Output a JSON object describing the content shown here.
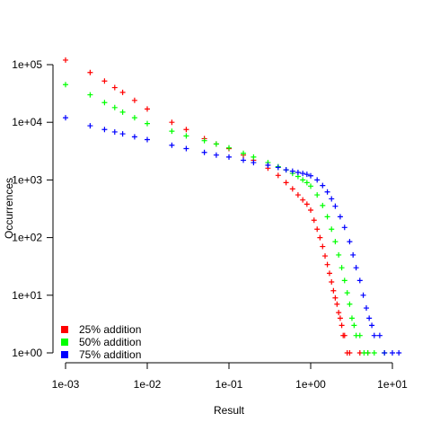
{
  "chart_data": {
    "type": "scatter",
    "title": "",
    "xlabel": "Result",
    "ylabel": "Occurrences",
    "xscale": "log",
    "yscale": "log",
    "xlim": [
      0.00075,
      15
    ],
    "ylim": [
      0.8,
      150000
    ],
    "x_ticks": [
      0.001,
      0.01,
      0.1,
      1,
      10
    ],
    "x_tick_labels": [
      "1e-03",
      "1e-02",
      "1e-01",
      "1e+00",
      "1e+01"
    ],
    "y_ticks": [
      1,
      10,
      100,
      1000,
      10000,
      100000
    ],
    "y_tick_labels": [
      "1e+00",
      "1e+01",
      "1e+02",
      "1e+03",
      "1e+04",
      "1e+05"
    ],
    "marker": "+",
    "grid": false,
    "legend_position": "bottom-left",
    "series": [
      {
        "name": "25% addition",
        "color": "#ff0000",
        "points": [
          [
            0.001,
            120000
          ],
          [
            0.002,
            73000
          ],
          [
            0.003,
            52000
          ],
          [
            0.004,
            40000
          ],
          [
            0.005,
            33000
          ],
          [
            0.007,
            24000
          ],
          [
            0.01,
            17000
          ],
          [
            0.02,
            10000
          ],
          [
            0.03,
            7500
          ],
          [
            0.05,
            5200
          ],
          [
            0.07,
            4200
          ],
          [
            0.1,
            3500
          ],
          [
            0.15,
            2700
          ],
          [
            0.2,
            2200
          ],
          [
            0.3,
            1600
          ],
          [
            0.4,
            1200
          ],
          [
            0.5,
            900
          ],
          [
            0.6,
            700
          ],
          [
            0.7,
            550
          ],
          [
            0.8,
            450
          ],
          [
            0.9,
            380
          ],
          [
            1.0,
            300
          ],
          [
            1.1,
            200
          ],
          [
            1.2,
            140
          ],
          [
            1.3,
            100
          ],
          [
            1.4,
            70
          ],
          [
            1.5,
            48
          ],
          [
            1.6,
            34
          ],
          [
            1.7,
            24
          ],
          [
            1.8,
            17
          ],
          [
            1.9,
            12
          ],
          [
            2.0,
            9
          ],
          [
            2.1,
            7
          ],
          [
            2.2,
            5
          ],
          [
            2.3,
            4
          ],
          [
            2.4,
            3
          ],
          [
            2.5,
            2
          ],
          [
            2.6,
            2
          ],
          [
            2.8,
            1
          ],
          [
            3.0,
            1
          ],
          [
            4.0,
            1
          ],
          [
            5.0,
            1
          ]
        ]
      },
      {
        "name": "50% addition",
        "color": "#00ff00",
        "points": [
          [
            0.001,
            45000
          ],
          [
            0.002,
            30000
          ],
          [
            0.003,
            22000
          ],
          [
            0.004,
            18000
          ],
          [
            0.005,
            15000
          ],
          [
            0.007,
            12000
          ],
          [
            0.01,
            9500
          ],
          [
            0.02,
            7000
          ],
          [
            0.03,
            5800
          ],
          [
            0.05,
            4800
          ],
          [
            0.07,
            4200
          ],
          [
            0.1,
            3600
          ],
          [
            0.15,
            2900
          ],
          [
            0.2,
            2500
          ],
          [
            0.3,
            2000
          ],
          [
            0.4,
            1700
          ],
          [
            0.5,
            1500
          ],
          [
            0.6,
            1300
          ],
          [
            0.7,
            1150
          ],
          [
            0.8,
            1000
          ],
          [
            0.9,
            900
          ],
          [
            1.0,
            780
          ],
          [
            1.2,
            550
          ],
          [
            1.4,
            360
          ],
          [
            1.6,
            230
          ],
          [
            1.8,
            140
          ],
          [
            2.0,
            85
          ],
          [
            2.2,
            50
          ],
          [
            2.4,
            30
          ],
          [
            2.6,
            18
          ],
          [
            2.8,
            11
          ],
          [
            3.0,
            7
          ],
          [
            3.2,
            4
          ],
          [
            3.4,
            3
          ],
          [
            3.6,
            2
          ],
          [
            4.0,
            2
          ],
          [
            4.5,
            1
          ],
          [
            5.0,
            1
          ],
          [
            6.0,
            1
          ],
          [
            8.0,
            1
          ]
        ]
      },
      {
        "name": "75% addition",
        "color": "#0000ff",
        "points": [
          [
            0.001,
            12000
          ],
          [
            0.002,
            8700
          ],
          [
            0.003,
            7500
          ],
          [
            0.004,
            6800
          ],
          [
            0.005,
            6300
          ],
          [
            0.007,
            5600
          ],
          [
            0.01,
            5000
          ],
          [
            0.02,
            4000
          ],
          [
            0.03,
            3500
          ],
          [
            0.05,
            3000
          ],
          [
            0.07,
            2700
          ],
          [
            0.1,
            2500
          ],
          [
            0.15,
            2200
          ],
          [
            0.2,
            2000
          ],
          [
            0.3,
            1800
          ],
          [
            0.4,
            1650
          ],
          [
            0.5,
            1500
          ],
          [
            0.6,
            1420
          ],
          [
            0.7,
            1350
          ],
          [
            0.8,
            1300
          ],
          [
            0.9,
            1250
          ],
          [
            1.0,
            1180
          ],
          [
            1.2,
            1000
          ],
          [
            1.4,
            800
          ],
          [
            1.6,
            620
          ],
          [
            1.8,
            470
          ],
          [
            2.0,
            350
          ],
          [
            2.3,
            230
          ],
          [
            2.6,
            150
          ],
          [
            3.0,
            85
          ],
          [
            3.3,
            50
          ],
          [
            3.6,
            30
          ],
          [
            4.0,
            18
          ],
          [
            4.4,
            10
          ],
          [
            4.8,
            6
          ],
          [
            5.2,
            4
          ],
          [
            5.6,
            3
          ],
          [
            6.0,
            2
          ],
          [
            7.0,
            2
          ],
          [
            8.0,
            1
          ],
          [
            10.0,
            1
          ],
          [
            12.0,
            1
          ]
        ]
      }
    ]
  }
}
